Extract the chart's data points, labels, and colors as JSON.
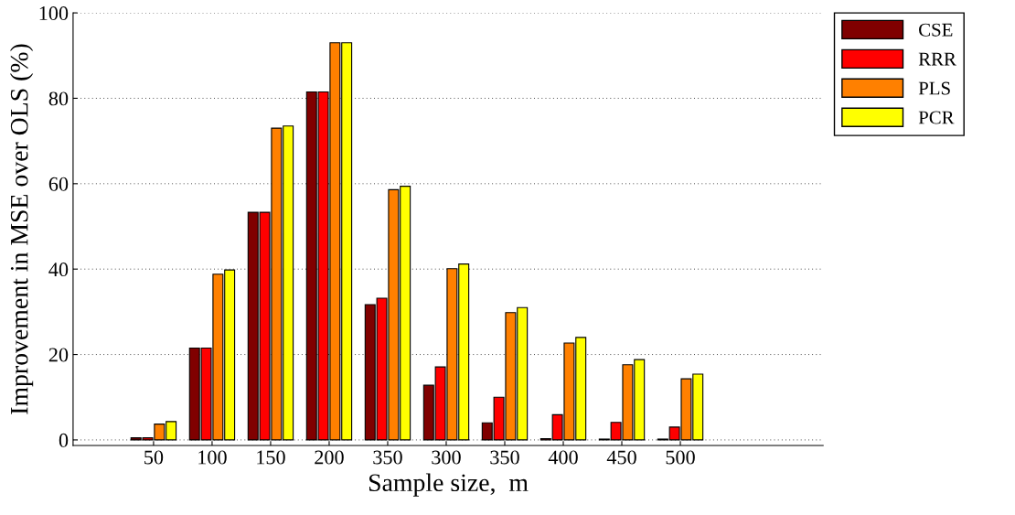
{
  "chart_data": {
    "type": "bar",
    "xlabel": "Sample size,  m",
    "ylabel": "Improvement in MSE over OLS (%)",
    "categories": [
      "50",
      "100",
      "150",
      "200",
      "350",
      "300",
      "350",
      "400",
      "450",
      "500"
    ],
    "series": [
      {
        "name": "CSE",
        "color": "#800000",
        "values": [
          0.5,
          21.5,
          53.3,
          81.5,
          31.7,
          12.8,
          4,
          0.3,
          0.2,
          0.2
        ]
      },
      {
        "name": "RRR",
        "color": "#ff0000",
        "values": [
          0.5,
          21.5,
          53.3,
          81.5,
          33.2,
          17.1,
          10,
          5.9,
          4.1,
          3
        ]
      },
      {
        "name": "PLS",
        "color": "#ff8000",
        "values": [
          3.7,
          38.8,
          73,
          93,
          58.6,
          40.1,
          29.8,
          22.7,
          17.6,
          14.3
        ]
      },
      {
        "name": "PCR",
        "color": "#ffff00",
        "values": [
          4.3,
          39.8,
          73.5,
          93,
          59.4,
          41.2,
          31,
          24,
          18.8,
          15.4
        ]
      }
    ],
    "ylim": [
      -1.3,
      100
    ],
    "yticks": [
      0,
      20,
      40,
      60,
      80,
      100
    ],
    "grid": "y",
    "legend": "top right"
  }
}
